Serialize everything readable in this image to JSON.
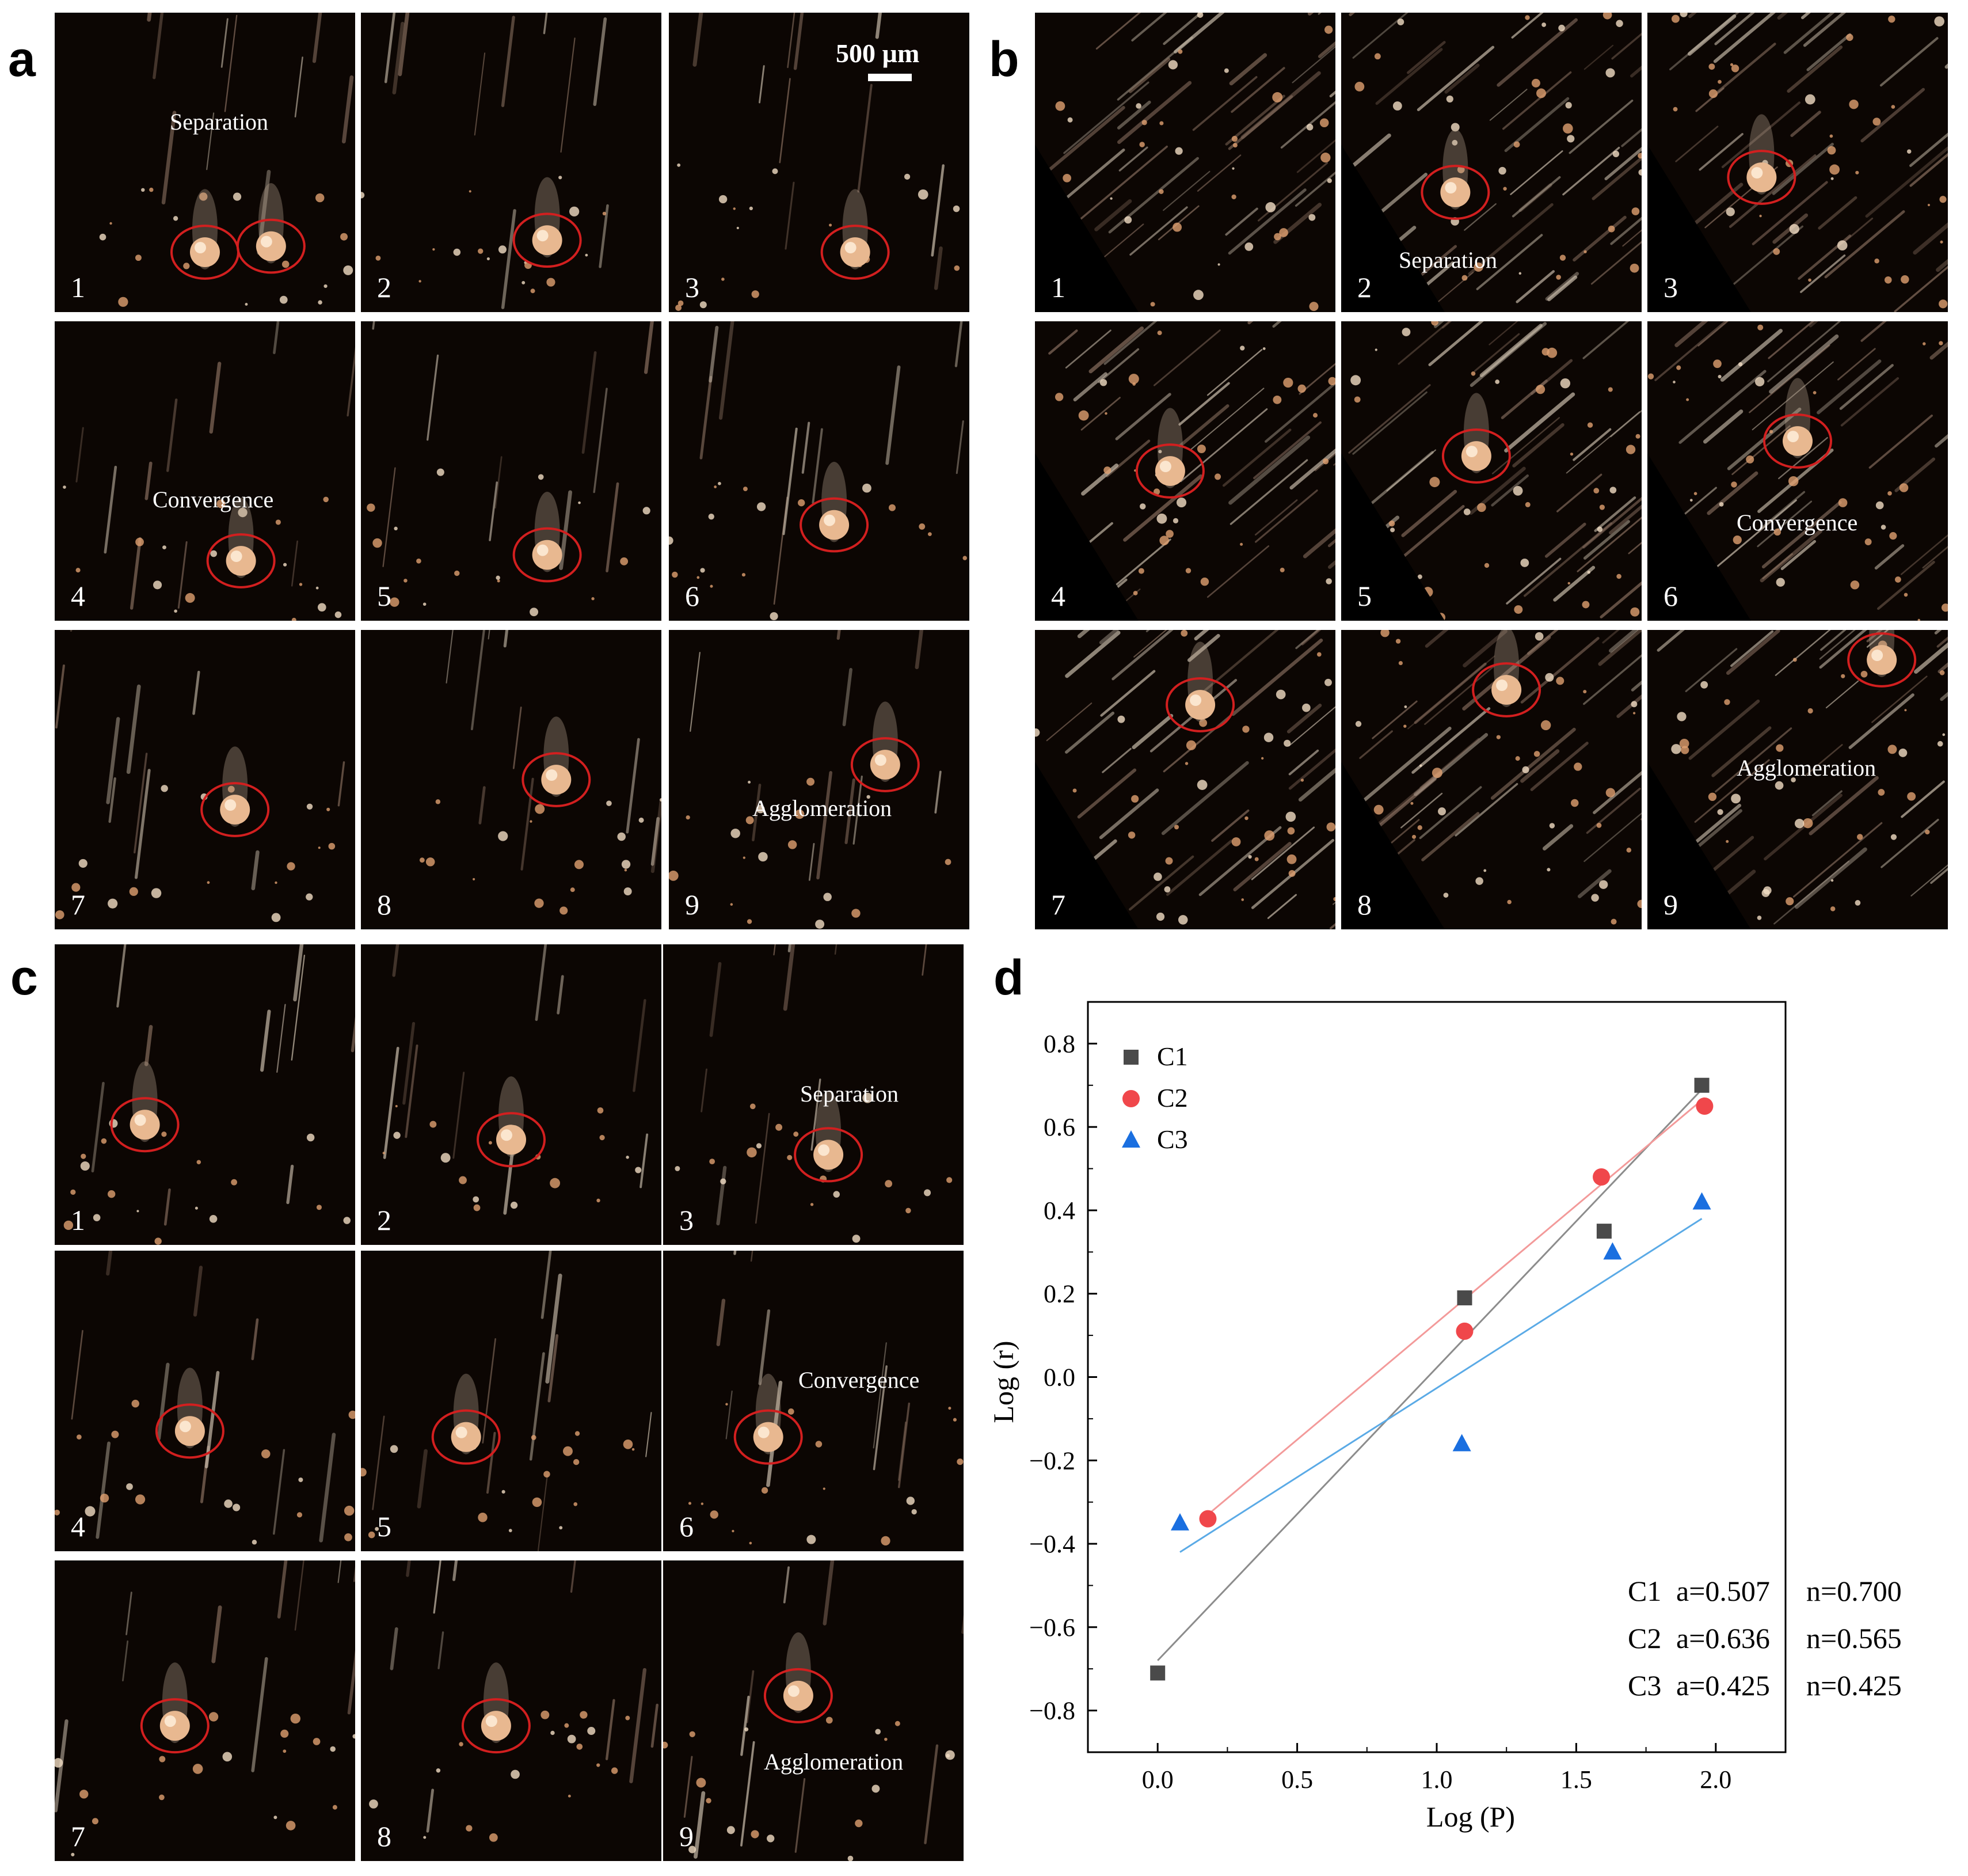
{
  "panels": {
    "a": {
      "letter": "a",
      "scale_label": "500 µm",
      "frames": [
        {
          "n": "1",
          "label": "Separation"
        },
        {
          "n": "2",
          "label": ""
        },
        {
          "n": "3",
          "label": ""
        },
        {
          "n": "4",
          "label": "Convergence"
        },
        {
          "n": "5",
          "label": ""
        },
        {
          "n": "6",
          "label": ""
        },
        {
          "n": "7",
          "label": ""
        },
        {
          "n": "8",
          "label": ""
        },
        {
          "n": "9",
          "label": "Agglomeration"
        }
      ]
    },
    "b": {
      "letter": "b",
      "frames": [
        {
          "n": "1",
          "label": ""
        },
        {
          "n": "2",
          "label": "Separation"
        },
        {
          "n": "3",
          "label": ""
        },
        {
          "n": "4",
          "label": ""
        },
        {
          "n": "5",
          "label": ""
        },
        {
          "n": "6",
          "label": "Convergence"
        },
        {
          "n": "7",
          "label": ""
        },
        {
          "n": "8",
          "label": ""
        },
        {
          "n": "9",
          "label": "Agglomeration"
        }
      ]
    },
    "c": {
      "letter": "c",
      "frames": [
        {
          "n": "1",
          "label": ""
        },
        {
          "n": "2",
          "label": ""
        },
        {
          "n": "3",
          "label": "Separation"
        },
        {
          "n": "4",
          "label": ""
        },
        {
          "n": "5",
          "label": ""
        },
        {
          "n": "6",
          "label": "Convergence"
        },
        {
          "n": "7",
          "label": ""
        },
        {
          "n": "8",
          "label": ""
        },
        {
          "n": "9",
          "label": "Agglomeration"
        }
      ]
    },
    "d": {
      "letter": "d"
    }
  },
  "colors": {
    "C1": "#4a4a4a",
    "C2": "#f0474b",
    "C3": "#1a6fe0",
    "fit_C1": "#8c8c8c",
    "fit_C2": "#f39a9a",
    "fit_C3": "#5aaae6",
    "circle": "#d21f1f"
  },
  "chart_data": {
    "type": "scatter",
    "xlabel": "Log (P)",
    "ylabel": "Log (r)",
    "xlim": [
      -0.25,
      2.25
    ],
    "ylim": [
      -0.9,
      0.9
    ],
    "xticks": [
      "0.0",
      "0.5",
      "1.0",
      "1.5",
      "2.0"
    ],
    "yticks": [
      "0.8",
      "0.6",
      "0.4",
      "0.2",
      "0.0",
      "−0.2",
      "−0.4",
      "−0.6",
      "−0.8"
    ],
    "legend_position": "top-left",
    "series": [
      {
        "name": "C1",
        "marker": "square",
        "x": [
          0.0,
          1.1,
          1.6,
          1.95
        ],
        "y": [
          -0.71,
          0.19,
          0.35,
          0.7
        ],
        "fit": {
          "x": [
            0.0,
            1.95
          ],
          "y": [
            -0.68,
            0.69
          ]
        }
      },
      {
        "name": "C2",
        "marker": "circle",
        "x": [
          0.18,
          1.1,
          1.59,
          1.96
        ],
        "y": [
          -0.34,
          0.11,
          0.48,
          0.65
        ],
        "fit": {
          "x": [
            0.18,
            1.96
          ],
          "y": [
            -0.33,
            0.67
          ]
        }
      },
      {
        "name": "C3",
        "marker": "triangle",
        "x": [
          0.08,
          1.09,
          1.63,
          1.95
        ],
        "y": [
          -0.35,
          -0.16,
          0.3,
          0.42
        ],
        "fit": {
          "x": [
            0.08,
            1.95
          ],
          "y": [
            -0.42,
            0.38
          ]
        }
      }
    ],
    "annotations": [
      {
        "series": "C1",
        "a": "a=0.507",
        "n": "n=0.700"
      },
      {
        "series": "C2",
        "a": "a=0.636",
        "n": "n=0.565"
      },
      {
        "series": "C3",
        "a": "a=0.425",
        "n": "n=0.425"
      }
    ]
  }
}
